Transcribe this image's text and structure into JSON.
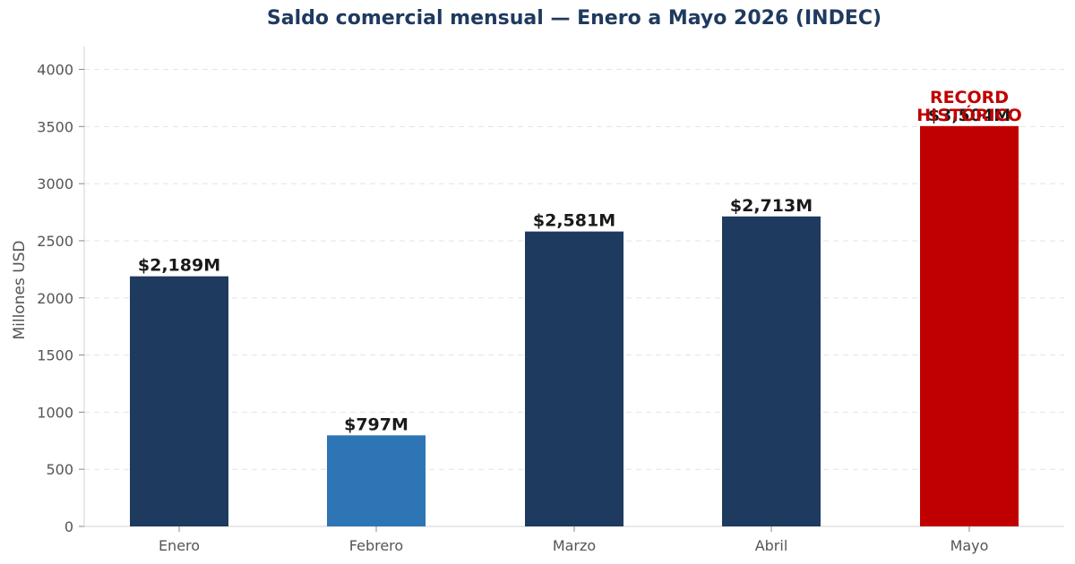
{
  "chart_data": {
    "type": "bar",
    "title": "Saldo comercial mensual — Enero a Mayo 2026 (INDEC)",
    "xlabel": "",
    "ylabel": "Millones USD",
    "ylim": [
      0,
      4200
    ],
    "yticks": [
      0,
      500,
      1000,
      1500,
      2000,
      2500,
      3000,
      3500,
      4000
    ],
    "grid": true,
    "categories": [
      "Enero",
      "Febrero",
      "Marzo",
      "Abril",
      "Mayo"
    ],
    "values": [
      2189,
      797,
      2581,
      2713,
      3504
    ],
    "value_labels": [
      "$2,189M",
      "$797M",
      "$2,581M",
      "$2,713M",
      "$3,504M"
    ],
    "bar_colors": [
      "#1f3a5f",
      "#2e75b6",
      "#1f3a5f",
      "#1f3a5f",
      "#c00000"
    ],
    "annotations": [
      {
        "category": "Mayo",
        "lines": [
          "RECORD",
          "HISTÓRICO"
        ],
        "color": "#c00000"
      }
    ]
  }
}
